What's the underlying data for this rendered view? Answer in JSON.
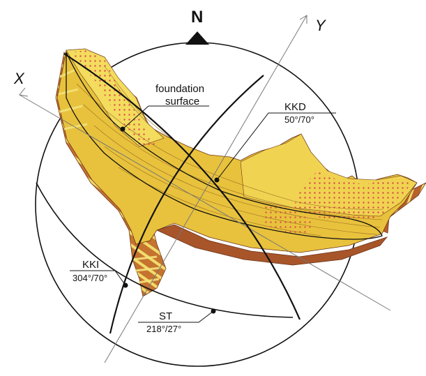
{
  "north_label": "N",
  "axes": {
    "x_label": "X",
    "y_label": "Y"
  },
  "foundation": {
    "line1": "foundation",
    "line2": "surface"
  },
  "planes": [
    {
      "id": "kkd",
      "name": "KKD",
      "orientation": "50°/70°"
    },
    {
      "id": "kki",
      "name": "KKI",
      "orientation": "304°/70°"
    },
    {
      "id": "st",
      "name": "ST",
      "orientation": "218°/27°"
    }
  ],
  "colors": {
    "rock_fill": "#e8c23c",
    "rock_fill_light": "#f3dc5e",
    "rock_fill_dark": "#c9a028",
    "rock_cut": "#b8612c",
    "rock_cut_dark": "#8e4420",
    "stripe": "#f4e27a",
    "dots": "#d9434a",
    "outline": "#111111",
    "axis_line": "#777777"
  }
}
